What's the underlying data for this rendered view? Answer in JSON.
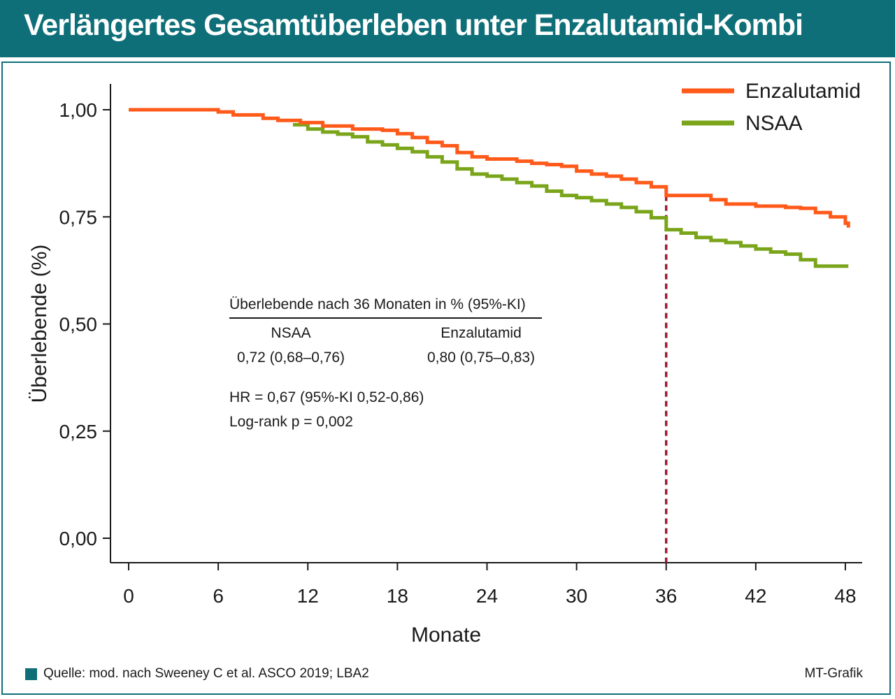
{
  "header": {
    "title": "Verlängertes Gesamtüberleben unter Enzalutamid-Kombi"
  },
  "footer": {
    "source": "Quelle: mod. nach Sweeney C et al. ASCO 2019; LBA2",
    "credit": "MT-Grafik"
  },
  "colors": {
    "header_bg": "#0e6f78",
    "enzalutamid": "#ff5a1a",
    "nsaa": "#7aa51a",
    "marker": "#9e1b32"
  },
  "chart_data": {
    "type": "line",
    "title": "",
    "xlabel": "Monate",
    "ylabel": "Überlebende (%)",
    "xlim": [
      0,
      48
    ],
    "ylim": [
      0,
      1
    ],
    "xticks": [
      0,
      6,
      12,
      18,
      24,
      30,
      36,
      42,
      48
    ],
    "xtick_labels": [
      "0",
      "6",
      "12",
      "18",
      "24",
      "30",
      "36",
      "42",
      "48"
    ],
    "yticks": [
      0,
      0.25,
      0.5,
      0.75,
      1.0
    ],
    "ytick_labels": [
      "0,00",
      "0,25",
      "0,50",
      "0,75",
      "1,00"
    ],
    "grid": false,
    "legend_position": "top-right",
    "step": true,
    "series": [
      {
        "name": "Enzalutamid",
        "color": "#ff5a1a",
        "x": [
          0,
          6,
          7,
          9,
          10,
          11.5,
          13,
          15,
          17,
          18,
          19,
          20,
          21,
          22,
          23,
          24,
          26,
          27,
          28,
          29,
          30,
          31,
          32,
          33,
          34,
          35,
          36,
          38,
          39,
          40,
          42,
          44,
          45,
          46,
          47,
          48,
          48.2
        ],
        "y": [
          1.0,
          0.995,
          0.988,
          0.98,
          0.975,
          0.97,
          0.962,
          0.955,
          0.952,
          0.944,
          0.935,
          0.924,
          0.916,
          0.9,
          0.89,
          0.885,
          0.88,
          0.875,
          0.872,
          0.868,
          0.857,
          0.85,
          0.845,
          0.838,
          0.83,
          0.82,
          0.8,
          0.8,
          0.79,
          0.78,
          0.775,
          0.772,
          0.77,
          0.76,
          0.75,
          0.735,
          0.725
        ]
      },
      {
        "name": "NSAA",
        "color": "#7aa51a",
        "x": [
          11,
          12,
          13,
          14,
          15,
          16,
          17,
          18,
          19,
          20,
          21,
          22,
          23,
          24,
          25,
          26,
          27,
          28,
          29,
          30,
          31,
          32,
          33,
          34,
          35,
          36,
          37,
          38,
          39,
          40,
          41,
          42,
          43,
          44,
          45,
          46,
          48.2
        ],
        "y": [
          0.965,
          0.955,
          0.948,
          0.943,
          0.937,
          0.925,
          0.918,
          0.91,
          0.902,
          0.89,
          0.878,
          0.862,
          0.85,
          0.845,
          0.838,
          0.83,
          0.822,
          0.81,
          0.8,
          0.795,
          0.788,
          0.78,
          0.772,
          0.762,
          0.748,
          0.72,
          0.712,
          0.702,
          0.695,
          0.69,
          0.682,
          0.675,
          0.668,
          0.663,
          0.65,
          0.635,
          0.635
        ]
      }
    ],
    "reference_line": {
      "x": 36,
      "y_from": 0,
      "y_to": 0.8,
      "style": "dashed"
    },
    "annotation": {
      "table_title": "Überlebende nach 36 Monaten in % (95%-KI)",
      "columns": [
        "NSAA",
        "Enzalutamid"
      ],
      "values": [
        "0,72 (0,68–0,76)",
        "0,80 (0,75–0,83)"
      ],
      "hr": "HR = 0,67 (95%-KI 0,52-0,86)",
      "logrank": "Log-rank p = 0,002"
    }
  }
}
